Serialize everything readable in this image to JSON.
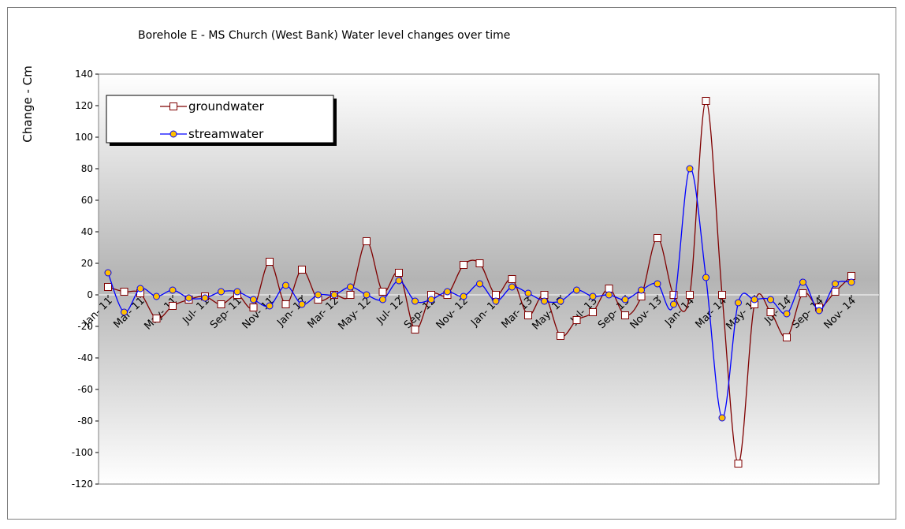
{
  "chart_data": {
    "type": "line",
    "title": "Borehole E - MS Church (West Bank) Water level changes over time",
    "ylabel": "Change - Cm",
    "xlabel": "",
    "ylim": [
      -120,
      140
    ],
    "yticks": [
      140,
      120,
      100,
      80,
      60,
      40,
      20,
      0,
      -20,
      -40,
      -60,
      -80,
      -100,
      -120
    ],
    "x_tick_labels": [
      "Jan- 11",
      "Mar- 11",
      "May- 11",
      "Jul- 11",
      "Sep- 11",
      "Nov- 11",
      "Jan- 12",
      "Mar- 12",
      "May- 12",
      "Jul- 12",
      "Sep- 12",
      "Nov- 12",
      "Jan- 13",
      "Mar- 13",
      "May- 13",
      "Jul- 13",
      "Sep- 13",
      "Nov- 13",
      "Jan- 14",
      "Mar- 14",
      "May- 14",
      "Jul- 14",
      "Sep- 14",
      "Nov- 14"
    ],
    "grid": false,
    "legend_position": "top-left",
    "background": "gradient gray",
    "series": [
      {
        "name": "groundwater",
        "color": "#7f0000",
        "marker": "square",
        "values": [
          5,
          2,
          1,
          -15,
          -7,
          -3,
          -1,
          -6,
          0,
          -8,
          21,
          -6,
          16,
          -3,
          0,
          0,
          34,
          2,
          14,
          -22,
          0,
          0,
          19,
          20,
          0,
          10,
          -13,
          0,
          -26,
          -16,
          -11,
          4,
          -13,
          -1,
          36,
          0,
          0,
          123,
          0,
          -107,
          -6,
          -11,
          -27,
          1,
          -8,
          2,
          12
        ]
      },
      {
        "name": "streamwater",
        "color": "#0000ff",
        "marker": "circle",
        "values": [
          14,
          -11,
          4,
          -1,
          3,
          -2,
          -2,
          2,
          2,
          -3,
          -7,
          6,
          -6,
          0,
          0,
          5,
          0,
          -3,
          9,
          -4,
          -3,
          2,
          -1,
          7,
          -4,
          5,
          1,
          -4,
          -4,
          3,
          -1,
          0,
          -3,
          3,
          7,
          -6,
          80,
          11,
          -78,
          -5,
          -3,
          -3,
          -12,
          8,
          -10,
          7,
          8
        ]
      }
    ]
  }
}
